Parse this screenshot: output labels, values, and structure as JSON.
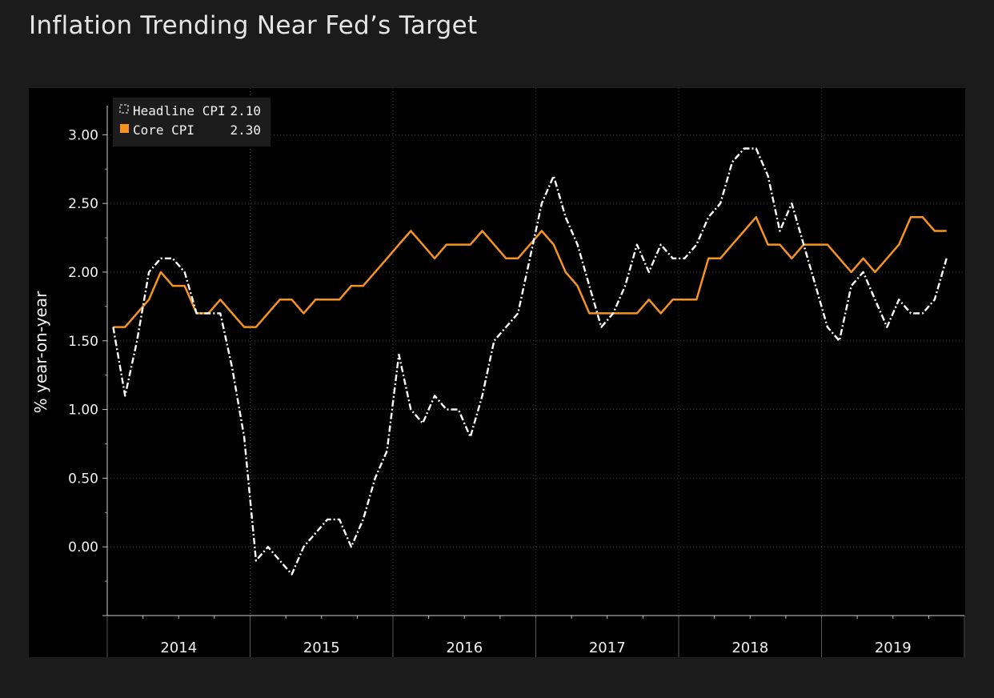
{
  "chart_data": {
    "type": "line",
    "title": "Inflation Trending Near Fed’s Target",
    "xlabel": "",
    "ylabel": "% year-on-year",
    "ylim": [
      -0.5,
      3.2
    ],
    "ytick_values": [
      0,
      0.5,
      1,
      1.5,
      2,
      2.5,
      3
    ],
    "ytick_labels": [
      "0.00",
      "0.50",
      "1.00",
      "1.50",
      "2.00",
      "2.50",
      "3.00"
    ],
    "years": [
      "2014",
      "2015",
      "2016",
      "2017",
      "2018",
      "2019"
    ],
    "x_start": "2014-01",
    "x_range_months": [
      -0.5,
      71.5
    ],
    "grid": true,
    "legend_position": "top-left",
    "series": [
      {
        "name": "Headline CPI",
        "last_value": "2.10",
        "color": "#ffffff",
        "style": "dash-dot",
        "values": [
          1.6,
          1.1,
          1.5,
          2.0,
          2.1,
          2.1,
          2.0,
          1.7,
          1.7,
          1.7,
          1.3,
          0.8,
          -0.1,
          0.0,
          -0.1,
          -0.2,
          0.0,
          0.1,
          0.2,
          0.2,
          0.0,
          0.2,
          0.5,
          0.7,
          1.4,
          1.0,
          0.9,
          1.1,
          1.0,
          1.0,
          0.8,
          1.1,
          1.5,
          1.6,
          1.7,
          2.1,
          2.5,
          2.7,
          2.4,
          2.2,
          1.9,
          1.6,
          1.7,
          1.9,
          2.2,
          2.0,
          2.2,
          2.1,
          2.1,
          2.2,
          2.4,
          2.5,
          2.8,
          2.9,
          2.9,
          2.7,
          2.3,
          2.5,
          2.2,
          1.9,
          1.6,
          1.5,
          1.9,
          2.0,
          1.8,
          1.6,
          1.8,
          1.7,
          1.7,
          1.8,
          2.1
        ]
      },
      {
        "name": "Core CPI",
        "last_value": "2.30",
        "color": "#f7931e",
        "style": "solid",
        "values": [
          1.6,
          1.6,
          1.7,
          1.8,
          2.0,
          1.9,
          1.9,
          1.7,
          1.7,
          1.8,
          1.7,
          1.6,
          1.6,
          1.7,
          1.8,
          1.8,
          1.7,
          1.8,
          1.8,
          1.8,
          1.9,
          1.9,
          2.0,
          2.1,
          2.2,
          2.3,
          2.2,
          2.1,
          2.2,
          2.2,
          2.2,
          2.3,
          2.2,
          2.1,
          2.1,
          2.2,
          2.3,
          2.2,
          2.0,
          1.9,
          1.7,
          1.7,
          1.7,
          1.7,
          1.7,
          1.8,
          1.7,
          1.8,
          1.8,
          1.8,
          2.1,
          2.1,
          2.2,
          2.3,
          2.4,
          2.2,
          2.2,
          2.1,
          2.2,
          2.2,
          2.2,
          2.1,
          2.0,
          2.1,
          2.0,
          2.1,
          2.2,
          2.4,
          2.4,
          2.3,
          2.3
        ]
      }
    ]
  }
}
